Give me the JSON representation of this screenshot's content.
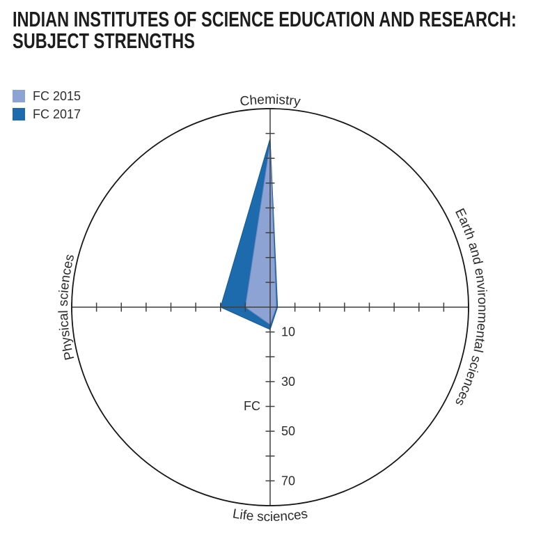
{
  "title": {
    "line1": "INDIAN INSTITUTES OF SCIENCE EDUCATION AND RESEARCH:",
    "line2": "SUBJECT STRENGTHS"
  },
  "legend": {
    "items": [
      {
        "label": "FC 2015",
        "color": "#8ca3d4"
      },
      {
        "label": "FC 2017",
        "color": "#1d6bad"
      }
    ]
  },
  "chart_data": {
    "type": "radar",
    "categories": [
      "Chemistry",
      "Earth and environmental sciences",
      "Life sciences",
      "Physical sciences"
    ],
    "series": [
      {
        "name": "FC 2015",
        "color": "#8ca3d4",
        "stroke": "#6d87c3",
        "values": [
          66,
          2.5,
          7,
          10
        ]
      },
      {
        "name": "FC 2017",
        "color": "#1d6bad",
        "stroke": "#135a97",
        "values": [
          68,
          3,
          9,
          20
        ]
      }
    ],
    "r_axis": {
      "label": "FC",
      "max": 80,
      "tick_step": 10,
      "labeled_ticks": [
        10,
        30,
        50,
        70
      ]
    },
    "layout": {
      "axis_color": "#3f3f3f",
      "circle_color": "#161616"
    }
  }
}
